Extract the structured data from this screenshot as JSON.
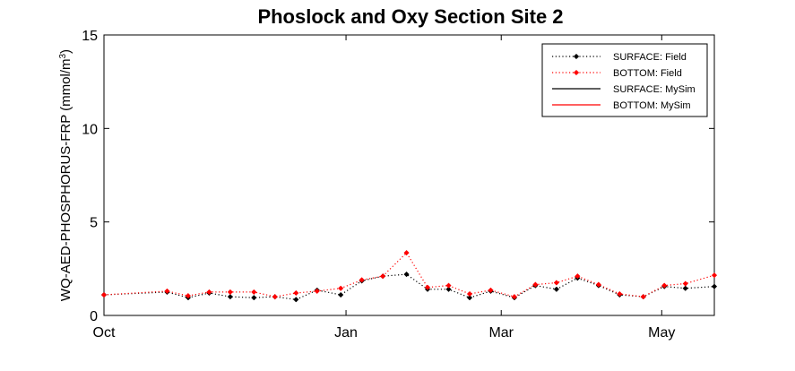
{
  "chart_data": {
    "type": "line",
    "title": "Phoslock and Oxy Section Site 2",
    "ylabel": "WQ-AED-PHOSPHORUS-FRP (mmol/m",
    "ylabel_sup": "3",
    "ylabel_close": ")",
    "xlabel": "",
    "ylim": [
      0,
      15
    ],
    "xlim": [
      "Oct",
      "May"
    ],
    "yticks": [
      0,
      5,
      10,
      15
    ],
    "xticks": [
      {
        "label": "Oct",
        "pos": 0
      },
      {
        "label": "Jan",
        "pos": 92
      },
      {
        "label": "Mar",
        "pos": 151
      },
      {
        "label": "May",
        "pos": 212
      }
    ],
    "grid": false,
    "legend_position": "top-right",
    "series": [
      {
        "name": "SURFACE: Field",
        "color": "#000000",
        "style": "dotted-marker",
        "points": [
          [
            0,
            1.1
          ],
          [
            24,
            1.25
          ],
          [
            32,
            0.95
          ],
          [
            40,
            1.2
          ],
          [
            48,
            1.0
          ],
          [
            57,
            0.95
          ],
          [
            65,
            1.0
          ],
          [
            73,
            0.85
          ],
          [
            81,
            1.35
          ],
          [
            90,
            1.1
          ],
          [
            98,
            1.85
          ],
          [
            106,
            2.1
          ],
          [
            115,
            2.2
          ],
          [
            123,
            1.4
          ],
          [
            131,
            1.4
          ],
          [
            139,
            0.95
          ],
          [
            147,
            1.3
          ],
          [
            156,
            0.95
          ],
          [
            164,
            1.6
          ],
          [
            172,
            1.4
          ],
          [
            180,
            2.0
          ],
          [
            188,
            1.6
          ],
          [
            196,
            1.1
          ],
          [
            205,
            1.0
          ],
          [
            213,
            1.55
          ],
          [
            221,
            1.45
          ],
          [
            232,
            1.55
          ]
        ]
      },
      {
        "name": "BOTTOM: Field",
        "color": "#ff0000",
        "style": "dotted-marker",
        "points": [
          [
            0,
            1.1
          ],
          [
            24,
            1.3
          ],
          [
            32,
            1.05
          ],
          [
            40,
            1.25
          ],
          [
            48,
            1.25
          ],
          [
            57,
            1.25
          ],
          [
            65,
            1.0
          ],
          [
            73,
            1.2
          ],
          [
            81,
            1.3
          ],
          [
            90,
            1.45
          ],
          [
            98,
            1.9
          ],
          [
            106,
            2.1
          ],
          [
            115,
            3.35
          ],
          [
            123,
            1.5
          ],
          [
            131,
            1.6
          ],
          [
            139,
            1.15
          ],
          [
            147,
            1.35
          ],
          [
            156,
            1.0
          ],
          [
            164,
            1.65
          ],
          [
            172,
            1.75
          ],
          [
            180,
            2.1
          ],
          [
            188,
            1.65
          ],
          [
            196,
            1.15
          ],
          [
            205,
            1.0
          ],
          [
            213,
            1.6
          ],
          [
            221,
            1.7
          ],
          [
            232,
            2.15
          ]
        ]
      },
      {
        "name": "SURFACE: MySim",
        "color": "#000000",
        "style": "solid",
        "points": []
      },
      {
        "name": "BOTTOM: MySim",
        "color": "#ff0000",
        "style": "solid",
        "points": []
      }
    ]
  }
}
